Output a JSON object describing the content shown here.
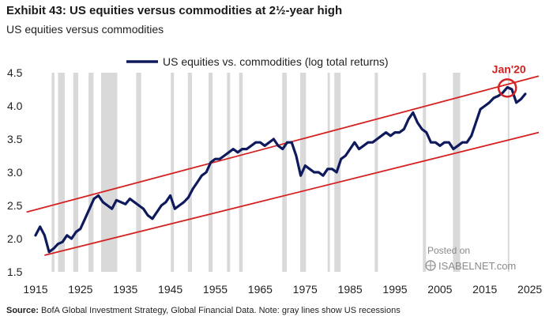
{
  "header": {
    "title": "Exhibit 43: US equities versus commodities at 2½-year high",
    "subtitle": "US equities versus commodities"
  },
  "source": {
    "label": "Source:",
    "text": " BofA Global Investment Strategy, Global Financial Data. Note:  gray lines show US recessions"
  },
  "watermark": {
    "posted": "Posted on",
    "site": "ISABELNET.com"
  },
  "chart_data": {
    "type": "line",
    "title": "",
    "xlabel": "",
    "ylabel": "",
    "xlim": [
      1915,
      2027
    ],
    "ylim": [
      1.5,
      4.5
    ],
    "x_ticks": [
      "1915",
      "1925",
      "1935",
      "1945",
      "1955",
      "1965",
      "1975",
      "1985",
      "1995",
      "2005",
      "2015",
      "2025"
    ],
    "y_ticks": [
      "1.5",
      "2.0",
      "2.5",
      "3.0",
      "3.5",
      "4.0",
      "4.5"
    ],
    "legend": {
      "position": "top-center",
      "entries": [
        "US equities vs. commodities (log total returns)"
      ]
    },
    "series": [
      {
        "name": "US equities vs. commodities (log total returns)",
        "color": "#0e1a5c",
        "x": [
          1915,
          1916,
          1917,
          1918,
          1919,
          1920,
          1921,
          1922,
          1923,
          1924,
          1925,
          1926,
          1927,
          1928,
          1929,
          1930,
          1931,
          1932,
          1933,
          1934,
          1935,
          1936,
          1937,
          1938,
          1939,
          1940,
          1941,
          1942,
          1943,
          1944,
          1945,
          1946,
          1947,
          1948,
          1949,
          1950,
          1951,
          1952,
          1953,
          1954,
          1955,
          1956,
          1957,
          1958,
          1959,
          1960,
          1961,
          1962,
          1963,
          1964,
          1965,
          1966,
          1967,
          1968,
          1969,
          1970,
          1971,
          1972,
          1973,
          1974,
          1975,
          1976,
          1977,
          1978,
          1979,
          1980,
          1981,
          1982,
          1983,
          1984,
          1985,
          1986,
          1987,
          1988,
          1989,
          1990,
          1991,
          1992,
          1993,
          1994,
          1995,
          1996,
          1997,
          1998,
          1999,
          2000,
          2001,
          2002,
          2003,
          2004,
          2005,
          2006,
          2007,
          2008,
          2009,
          2010,
          2011,
          2012,
          2013,
          2014,
          2015,
          2016,
          2017,
          2018,
          2019,
          2020,
          2021,
          2022,
          2023,
          2024
        ],
        "values": [
          2.05,
          2.18,
          2.05,
          1.8,
          1.85,
          1.92,
          1.95,
          2.05,
          2.0,
          2.1,
          2.15,
          2.3,
          2.45,
          2.6,
          2.65,
          2.55,
          2.5,
          2.45,
          2.58,
          2.55,
          2.52,
          2.6,
          2.55,
          2.5,
          2.45,
          2.35,
          2.3,
          2.4,
          2.5,
          2.55,
          2.65,
          2.45,
          2.5,
          2.55,
          2.62,
          2.75,
          2.85,
          2.95,
          3.0,
          3.15,
          3.2,
          3.2,
          3.25,
          3.3,
          3.35,
          3.3,
          3.35,
          3.35,
          3.4,
          3.45,
          3.45,
          3.4,
          3.45,
          3.5,
          3.4,
          3.35,
          3.45,
          3.45,
          3.25,
          2.95,
          3.1,
          3.05,
          3.0,
          3.0,
          2.95,
          3.05,
          3.05,
          3.0,
          3.2,
          3.25,
          3.35,
          3.45,
          3.35,
          3.4,
          3.45,
          3.45,
          3.5,
          3.55,
          3.6,
          3.55,
          3.6,
          3.6,
          3.65,
          3.8,
          3.9,
          3.75,
          3.65,
          3.6,
          3.45,
          3.45,
          3.4,
          3.45,
          3.45,
          3.35,
          3.4,
          3.45,
          3.45,
          3.55,
          3.75,
          3.95,
          4.0,
          4.05,
          4.12,
          4.15,
          4.2,
          4.28,
          4.25,
          4.05,
          4.1,
          4.18
        ]
      }
    ],
    "channel_lines": [
      {
        "name": "upper trend line",
        "color": "#d42222",
        "x": [
          1913,
          2027
        ],
        "values": [
          2.4,
          4.45
        ]
      },
      {
        "name": "lower trend line",
        "color": "#d42222",
        "x": [
          1917,
          2027
        ],
        "values": [
          1.75,
          3.6
        ]
      }
    ],
    "recessions": [
      [
        1918.6,
        1919.2
      ],
      [
        1920.0,
        1921.5
      ],
      [
        1923.4,
        1924.5
      ],
      [
        1926.8,
        1927.9
      ],
      [
        1929.6,
        1933.2
      ],
      [
        1937.4,
        1938.5
      ],
      [
        1945.1,
        1945.8
      ],
      [
        1948.9,
        1949.8
      ],
      [
        1953.5,
        1954.4
      ],
      [
        1957.6,
        1958.3
      ],
      [
        1960.3,
        1961.1
      ],
      [
        1969.9,
        1970.9
      ],
      [
        1973.9,
        1975.2
      ],
      [
        1980.0,
        1980.5
      ],
      [
        1981.5,
        1982.9
      ],
      [
        1990.5,
        1991.2
      ],
      [
        2001.2,
        2001.9
      ],
      [
        2007.9,
        2009.5
      ],
      [
        2020.1,
        2020.4
      ]
    ],
    "recession_color": "#d9d9d9",
    "annotation": {
      "label": "Jan'20",
      "x": 2020,
      "y": 4.27,
      "color": "#d42222"
    }
  }
}
